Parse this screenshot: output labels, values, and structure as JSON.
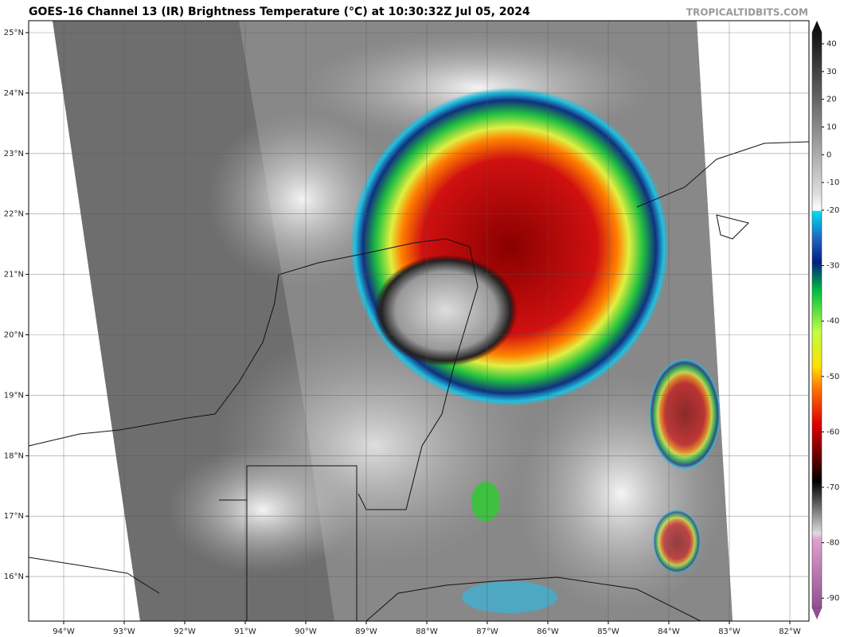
{
  "header": {
    "title": "GOES-16 Channel 13 (IR) Brightness Temperature (°C) at 10:30:32Z Jul 05, 2024",
    "credit": "TROPICALTIDBITS.COM"
  },
  "map": {
    "lat_ticks": [
      {
        "value": 25,
        "label": "25°N"
      },
      {
        "value": 24,
        "label": "24°N"
      },
      {
        "value": 23,
        "label": "23°N"
      },
      {
        "value": 22,
        "label": "22°N"
      },
      {
        "value": 21,
        "label": "21°N"
      },
      {
        "value": 20,
        "label": "20°N"
      },
      {
        "value": 19,
        "label": "19°N"
      },
      {
        "value": 18,
        "label": "18°N"
      },
      {
        "value": 17,
        "label": "17°N"
      },
      {
        "value": 16,
        "label": "16°N"
      }
    ],
    "lon_ticks": [
      {
        "value": -94,
        "label": "94°W"
      },
      {
        "value": -93,
        "label": "93°W"
      },
      {
        "value": -92,
        "label": "92°W"
      },
      {
        "value": -91,
        "label": "91°W"
      },
      {
        "value": -90,
        "label": "90°W"
      },
      {
        "value": -89,
        "label": "89°W"
      },
      {
        "value": -88,
        "label": "88°W"
      },
      {
        "value": -87,
        "label": "87°W"
      },
      {
        "value": -86,
        "label": "86°W"
      },
      {
        "value": -85,
        "label": "85°W"
      },
      {
        "value": -84,
        "label": "84°W"
      },
      {
        "value": -83,
        "label": "83°W"
      },
      {
        "value": -82,
        "label": "82°W"
      }
    ]
  },
  "colorbar": {
    "ticks": [
      40,
      30,
      20,
      10,
      0,
      -10,
      -20,
      -30,
      -40,
      -50,
      -60,
      -70,
      -80,
      -90
    ]
  }
}
